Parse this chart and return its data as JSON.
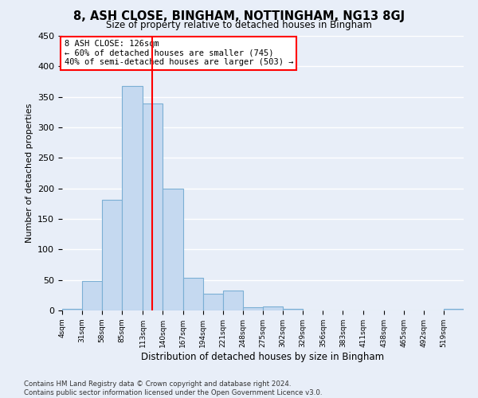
{
  "title": "8, ASH CLOSE, BINGHAM, NOTTINGHAM, NG13 8GJ",
  "subtitle": "Size of property relative to detached houses in Bingham",
  "xlabel": "Distribution of detached houses by size in Bingham",
  "ylabel": "Number of detached properties",
  "bar_color": "#c5d9f0",
  "bar_edge_color": "#7bafd4",
  "fig_background_color": "#e8eef8",
  "plot_background_color": "#e8eef8",
  "grid_color": "#ffffff",
  "vline_x": 126,
  "vline_color": "red",
  "annotation_lines": [
    "8 ASH CLOSE: 126sqm",
    "← 60% of detached houses are smaller (745)",
    "40% of semi-detached houses are larger (503) →"
  ],
  "annotation_box_color": "red",
  "bin_edges": [
    4,
    31,
    58,
    85,
    113,
    140,
    167,
    194,
    221,
    248,
    275,
    302,
    329,
    356,
    383,
    411,
    438,
    465,
    492,
    519,
    546
  ],
  "bar_heights": [
    2,
    48,
    181,
    368,
    339,
    199,
    54,
    28,
    33,
    5,
    6,
    3,
    0,
    0,
    0,
    0,
    0,
    0,
    0,
    2
  ],
  "ylim": [
    0,
    450
  ],
  "yticks": [
    0,
    50,
    100,
    150,
    200,
    250,
    300,
    350,
    400,
    450
  ],
  "footer": "Contains HM Land Registry data © Crown copyright and database right 2024.\nContains public sector information licensed under the Open Government Licence v3.0."
}
